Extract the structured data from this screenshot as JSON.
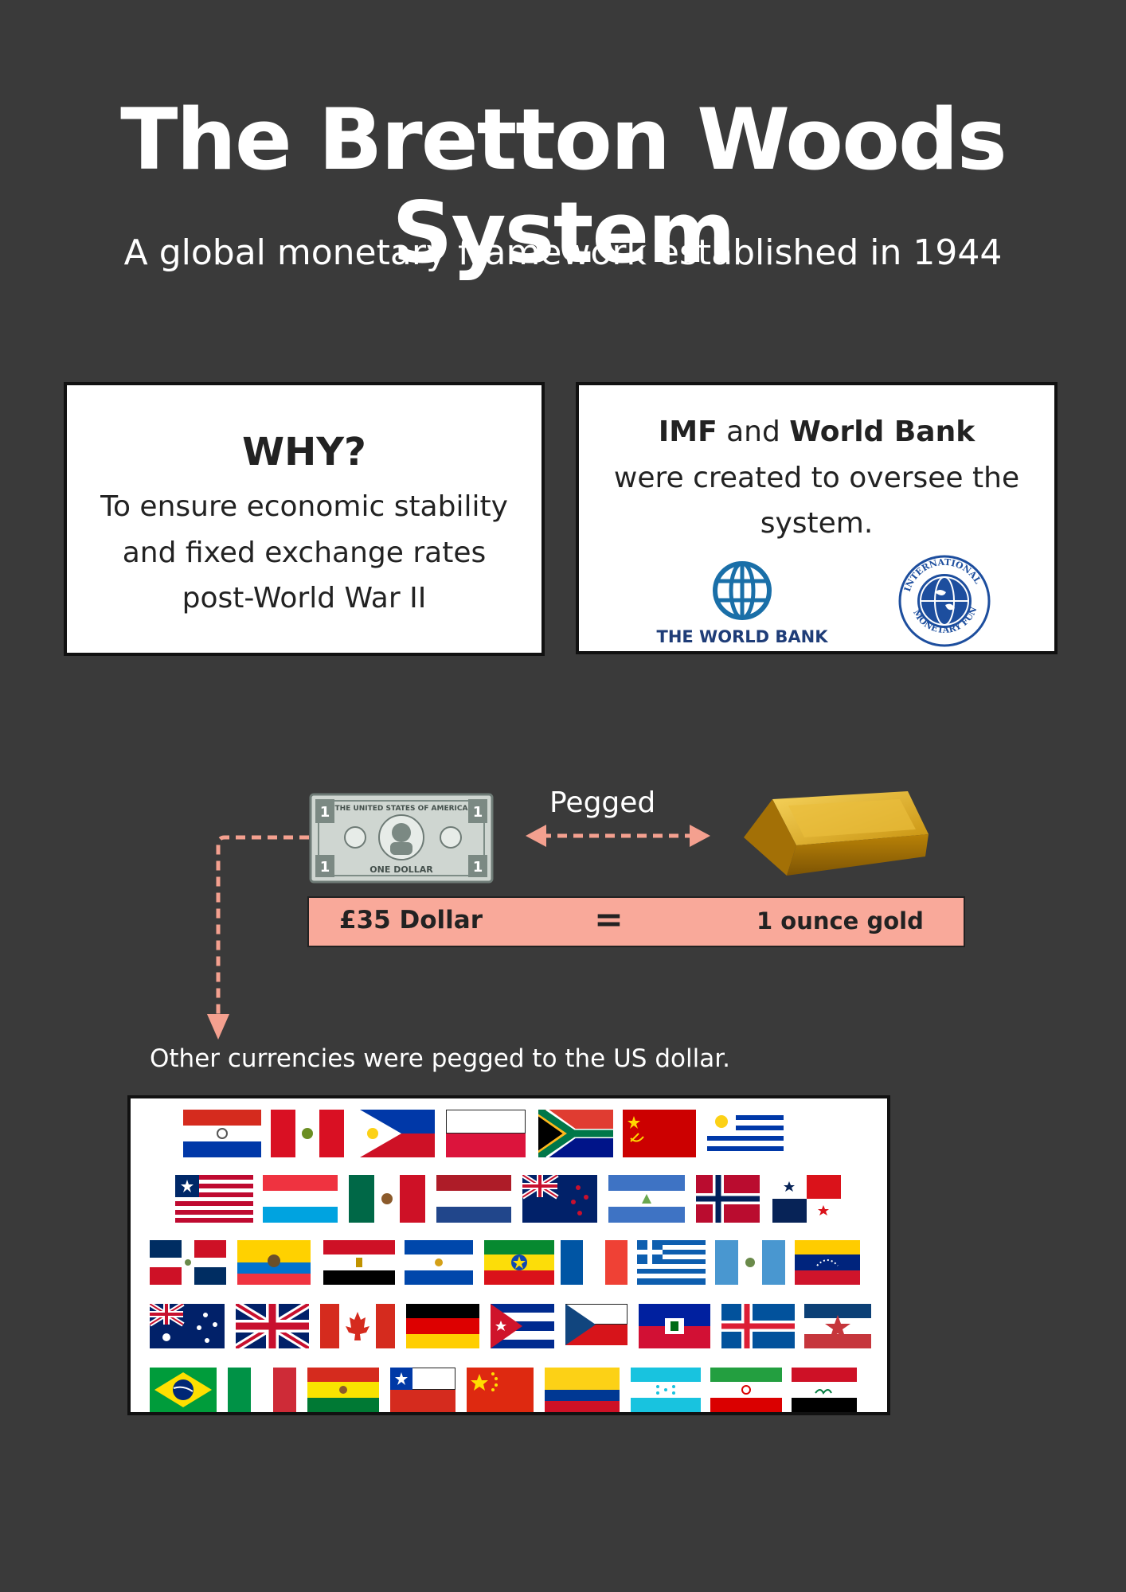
{
  "header": {
    "title": "The Bretton Woods System",
    "subtitle": "A global monetary framework established in 1944"
  },
  "why_box": {
    "heading": "WHY?",
    "text": "To ensure economic stability and fixed exchange rates post-World War II"
  },
  "institutions_box": {
    "imf": "IMF",
    "and": "and",
    "world_bank": "World Bank",
    "text": "were created to oversee the system.",
    "world_bank_logo_text": "THE WORLD BANK",
    "imf_seal_text": "INTERNATIONAL MONETARY FUND"
  },
  "peg": {
    "label": "Pegged",
    "bill_text_top": "THE UNITED STATES OF AMERICA",
    "bill_text_bottom": "ONE DOLLAR",
    "bill_denomination": "1",
    "equation_left": "£35 Dollar",
    "equation_sign": "=",
    "equation_right": "1 ounce gold",
    "arrow_color": "#f4a08f"
  },
  "currencies": {
    "note": "Other currencies were pegged to the US dollar."
  },
  "colors": {
    "background": "#3a3a3a",
    "equation_bar": "#f9a99a",
    "gold": "#d4a017"
  }
}
